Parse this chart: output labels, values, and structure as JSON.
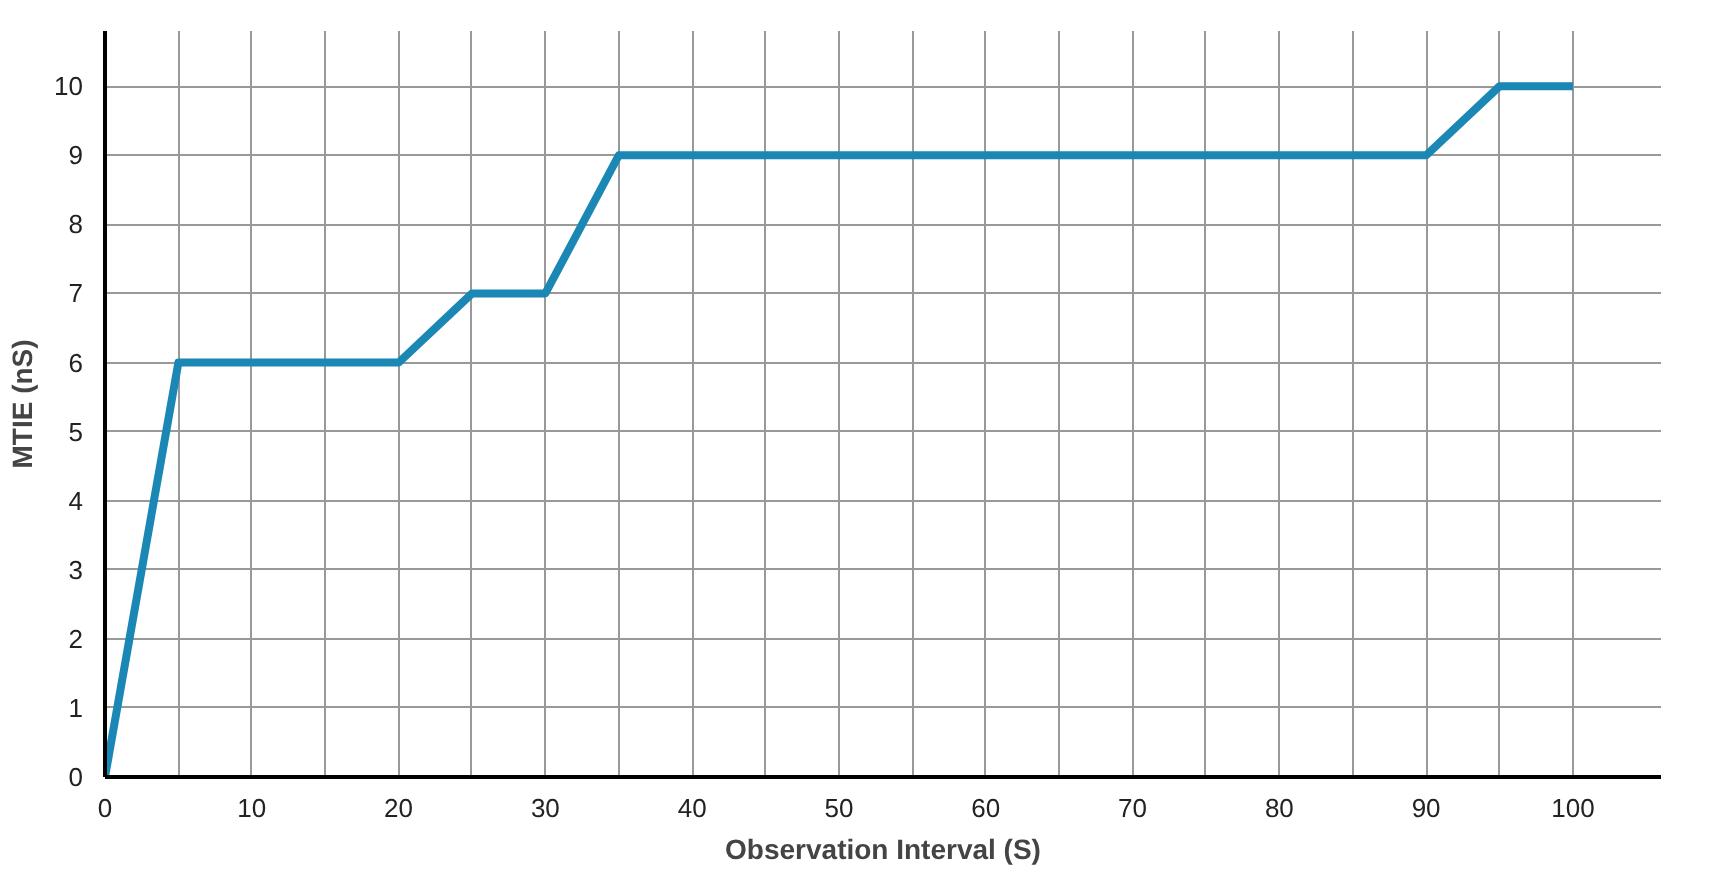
{
  "chart_data": {
    "type": "line",
    "xlabel": "Observation Interval (S)",
    "ylabel": "MTIE (nS)",
    "x": [
      0,
      5,
      20,
      25,
      30,
      35,
      90,
      95,
      100
    ],
    "series": [
      {
        "color": "#1a87b5",
        "values": [
          0,
          6,
          6,
          7,
          7,
          9,
          9,
          10,
          10
        ]
      }
    ],
    "xlim": [
      0,
      106
    ],
    "ylim": [
      0,
      10.8
    ],
    "xticks": [
      0,
      {
        "value": 5,
        "label": null
      },
      10,
      {
        "value": 15,
        "label": null
      },
      20,
      {
        "value": 25,
        "label": null
      },
      30,
      {
        "value": 35,
        "label": null
      },
      40,
      {
        "value": 45,
        "label": null
      },
      50,
      {
        "value": 55,
        "label": null
      },
      60,
      {
        "value": 65,
        "label": null
      },
      70,
      {
        "value": 75,
        "label": null
      },
      80,
      {
        "value": 85,
        "label": null
      },
      90,
      {
        "value": 95,
        "label": null
      },
      100
    ],
    "yticks": [
      0,
      1,
      2,
      3,
      4,
      5,
      6,
      7,
      8,
      9,
      10
    ],
    "grid": true,
    "marker": "none",
    "line_style": "solid"
  }
}
